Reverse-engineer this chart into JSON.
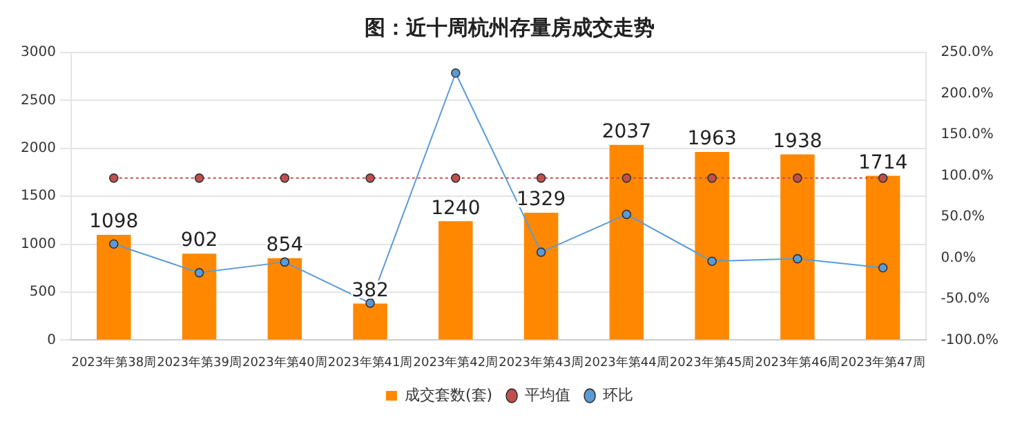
{
  "chart_data": {
    "type": "bar",
    "title": "图：近十周杭州存量房成交走势",
    "categories": [
      "2023年第38周",
      "2023年第39周",
      "2023年第40周",
      "2023年第41周",
      "2023年第42周",
      "2023年第43周",
      "2023年第44周",
      "2023年第45周",
      "2023年第46周",
      "2023年第47周"
    ],
    "series": [
      {
        "name": "成交套数(套)",
        "color": "#ff8800",
        "values": [
          1098,
          902,
          854,
          382,
          1240,
          1329,
          2037,
          1963,
          1938,
          1714
        ],
        "value_labels": [
          "1098",
          "902",
          "854",
          "382",
          "1240",
          "1329",
          "2037",
          "1963",
          "1938",
          "1714"
        ]
      },
      {
        "name": "平均值",
        "type": "line",
        "color": "#c0504d",
        "line_style": "dotted",
        "marker": "circle",
        "values": [
          1690,
          1690,
          1690,
          1690,
          1690,
          1690,
          1690,
          1690,
          1690,
          1690
        ]
      },
      {
        "name": "环比",
        "type": "line",
        "color": "#5b9bd5",
        "line_style": "solid",
        "marker": "circle",
        "axis": "y2",
        "values": [
          17,
          -18,
          -5,
          -55,
          225,
          7,
          53,
          -4,
          -1,
          -12
        ]
      }
    ],
    "ylim": [
      0,
      3000
    ],
    "yticks": [
      0,
      500,
      1000,
      1500,
      2000,
      2500,
      3000
    ],
    "y2lim": [
      -100,
      250
    ],
    "y2ticks": [
      {
        "value": -100,
        "label": "-100.0%"
      },
      {
        "value": -50,
        "label": "-50.0%"
      },
      {
        "value": 0,
        "label": "0.0%"
      },
      {
        "value": 50,
        "label": "50.0%"
      },
      {
        "value": 100,
        "label": "100.0%"
      },
      {
        "value": 150,
        "label": "150.0%"
      },
      {
        "value": 200,
        "label": "200.0%"
      },
      {
        "value": 250,
        "label": "250.0%"
      }
    ],
    "grid": "y",
    "legend": "bottom"
  }
}
